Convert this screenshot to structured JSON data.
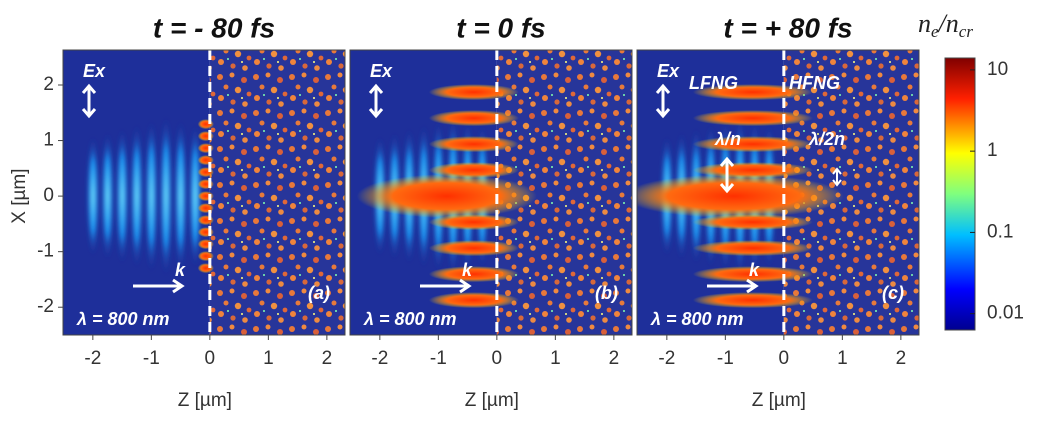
{
  "chart_data": [
    {
      "type": "heatmap",
      "title": "t = - 80 fs",
      "xlabel": "Z [µm]",
      "ylabel": "X [µm]",
      "xlim": [
        -2.51,
        2.31
      ],
      "xticks": [
        -2,
        -1,
        0,
        1,
        2
      ],
      "ylim": [
        -2.5,
        2.63
      ],
      "yticks": [
        -2,
        -1,
        0,
        1,
        2
      ],
      "annotations": [
        "Ex",
        "k",
        "λ = 800 nm",
        "(a)"
      ]
    },
    {
      "type": "heatmap",
      "title": "t = 0 fs",
      "xlabel": "Z [µm]",
      "xlim": [
        -2.51,
        2.31
      ],
      "xticks": [
        -2,
        -1,
        0,
        1,
        2
      ],
      "ylim": [
        -2.5,
        2.63
      ],
      "annotations": [
        "Ex",
        "k",
        "λ = 800 nm",
        "(b)"
      ]
    },
    {
      "type": "heatmap",
      "title": "t = + 80 fs",
      "xlabel": "Z [µm]",
      "xlim": [
        -2.51,
        2.31
      ],
      "xticks": [
        -2,
        -1,
        0,
        1,
        2
      ],
      "ylim": [
        -2.5,
        2.63
      ],
      "annotations": [
        "Ex",
        "k",
        "λ = 800 nm",
        "(c)",
        "LFNG",
        "HFNG",
        "λ/n",
        "λ/2n"
      ]
    }
  ],
  "colorbar": {
    "label_parts": [
      "n",
      "e",
      "/n",
      "cr"
    ],
    "log": true,
    "lim": [
      0.0063,
      14
    ],
    "ticks": [
      10,
      1,
      0.1,
      0.01
    ]
  }
}
